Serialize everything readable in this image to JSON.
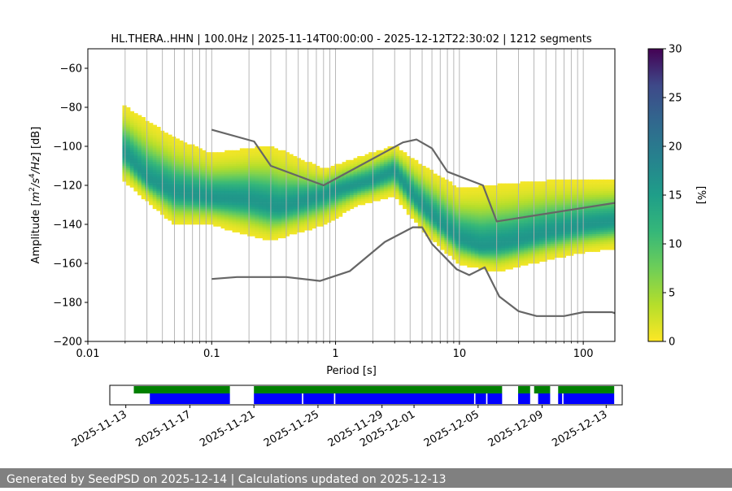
{
  "chart_data": [
    {
      "type": "heatmap",
      "title": "HL.THERA..HHN | 100.0Hz | 2025-11-14T00:00:00 - 2025-12-12T22:30:02 | 1212 segments",
      "xlabel": "Period [s]",
      "ylabel": "Amplitude [m²/s⁴/Hz] [dB]",
      "ylabel_parts": {
        "pre": "Amplitude [",
        "m": "m",
        "sup1": "2",
        "s": "/s",
        "sup2": "4",
        "hz": "/Hz",
        "post": "] [dB]"
      },
      "xscale": "log",
      "xlim": [
        0.01,
        180
      ],
      "ylim": [
        -200,
        -50
      ],
      "xticks": [
        {
          "value": 0.01,
          "label": "0.01"
        },
        {
          "value": 0.1,
          "label": "0.1"
        },
        {
          "value": 1,
          "label": "1"
        },
        {
          "value": 10,
          "label": "10"
        },
        {
          "value": 100,
          "label": "100"
        }
      ],
      "yticks": [
        {
          "value": -200,
          "label": "−200"
        },
        {
          "value": -180,
          "label": "−180"
        },
        {
          "value": -160,
          "label": "−160"
        },
        {
          "value": -140,
          "label": "−140"
        },
        {
          "value": -120,
          "label": "−120"
        },
        {
          "value": -100,
          "label": "−100"
        },
        {
          "value": -80,
          "label": "−80"
        },
        {
          "value": -60,
          "label": "−60"
        }
      ],
      "grid": "vertical lines at period bins",
      "colorbar": {
        "label": "[%]",
        "range": [
          0,
          30
        ],
        "ticks": [
          {
            "value": 0,
            "label": "0"
          },
          {
            "value": 5,
            "label": "5"
          },
          {
            "value": 10,
            "label": "10"
          },
          {
            "value": 15,
            "label": "15"
          },
          {
            "value": 20,
            "label": "20"
          },
          {
            "value": 25,
            "label": "25"
          },
          {
            "value": 30,
            "label": "30"
          }
        ],
        "colormap": "viridis_r"
      },
      "psd_mode": [
        [
          0.02,
          -104
        ],
        [
          0.03,
          -117
        ],
        [
          0.05,
          -124
        ],
        [
          0.1,
          -127
        ],
        [
          0.2,
          -128
        ],
        [
          0.35,
          -132
        ],
        [
          0.6,
          -128
        ],
        [
          1,
          -123
        ],
        [
          2,
          -118
        ],
        [
          3,
          -113
        ],
        [
          4.5,
          -128
        ],
        [
          7,
          -140
        ],
        [
          10,
          -148
        ],
        [
          15,
          -152
        ],
        [
          25,
          -150
        ],
        [
          50,
          -145
        ],
        [
          100,
          -141
        ],
        [
          180,
          -139
        ]
      ],
      "psd_spread_low": [
        [
          0.02,
          -118
        ],
        [
          0.05,
          -140
        ],
        [
          0.1,
          -140
        ],
        [
          0.3,
          -148
        ],
        [
          0.8,
          -140
        ],
        [
          1.5,
          -130
        ],
        [
          3,
          -125
        ],
        [
          5,
          -143
        ],
        [
          10,
          -160
        ],
        [
          20,
          -164
        ],
        [
          50,
          -158
        ],
        [
          100,
          -154
        ],
        [
          180,
          -152
        ]
      ],
      "psd_spread_high": [
        [
          0.02,
          -80
        ],
        [
          0.05,
          -96
        ],
        [
          0.1,
          -104
        ],
        [
          0.3,
          -100
        ],
        [
          0.8,
          -112
        ],
        [
          1.5,
          -106
        ],
        [
          3,
          -100
        ],
        [
          5,
          -110
        ],
        [
          10,
          -122
        ],
        [
          20,
          -120
        ],
        [
          50,
          -118
        ],
        [
          100,
          -118
        ],
        [
          180,
          -118
        ]
      ],
      "series": [
        {
          "x": [
            0.1,
            0.22,
            0.3,
            0.8,
            3.5,
            4.5,
            6,
            8,
            15.5,
            20,
            180
          ],
          "y": [
            -91.5,
            -97.5,
            -110,
            -120,
            -98,
            -96.5,
            -101,
            -113,
            -120,
            -138.5,
            -129
          ]
        },
        {
          "x": [
            0.1,
            0.16,
            0.4,
            0.75,
            1.3,
            2.5,
            4.2,
            5,
            6,
            9.5,
            12,
            16,
            21,
            30,
            42,
            70,
            100,
            170,
            180
          ],
          "y": [
            -168,
            -167,
            -167,
            -169,
            -164,
            -149,
            -141.5,
            -141.5,
            -150,
            -163,
            -166,
            -162,
            -177,
            -184.5,
            -187,
            -187,
            -185,
            -185,
            -185.5
          ]
        }
      ]
    },
    {
      "type": "timeline",
      "xticks": [
        "2025-11-13",
        "2025-11-17",
        "2025-11-21",
        "2025-11-25",
        "2025-11-29",
        "2025-12-01",
        "2025-12-05",
        "2025-12-09",
        "2025-12-13"
      ],
      "xlim": [
        "2025-11-12T00:00",
        "2025-12-14T00:00"
      ],
      "series": [
        {
          "name": "",
          "color": "#008000",
          "segments": [
            [
              "2025-11-13T12:00",
              "2025-11-19T12:00"
            ],
            [
              "2025-11-21T00:00",
              "2025-12-06T12:00"
            ],
            [
              "2025-12-07T12:00",
              "2025-12-08T06:00"
            ],
            [
              "2025-12-08T12:00",
              "2025-12-09T12:00"
            ],
            [
              "2025-12-10T00:00",
              "2025-12-13T12:00"
            ]
          ]
        },
        {
          "name": "",
          "color": "#0000ff",
          "segments": [
            [
              "2025-11-14T12:00",
              "2025-11-19T12:00"
            ],
            [
              "2025-11-21T00:00",
              "2025-11-24T00:00"
            ],
            [
              "2025-11-24T02:00",
              "2025-11-26T00:00"
            ],
            [
              "2025-11-26T02:00",
              "2025-12-04T18:00"
            ],
            [
              "2025-12-04T20:00",
              "2025-12-05T12:00"
            ],
            [
              "2025-12-05T14:00",
              "2025-12-06T12:00"
            ],
            [
              "2025-12-07T12:00",
              "2025-12-08T06:00"
            ],
            [
              "2025-12-08T18:00",
              "2025-12-09T12:00"
            ],
            [
              "2025-12-10T00:00",
              "2025-12-10T06:00"
            ],
            [
              "2025-12-10T08:00",
              "2025-12-13T12:00"
            ]
          ]
        }
      ]
    }
  ],
  "footer": {
    "text": "Generated by SeedPSD on 2025-12-14 | Calculations updated on 2025-12-13"
  }
}
